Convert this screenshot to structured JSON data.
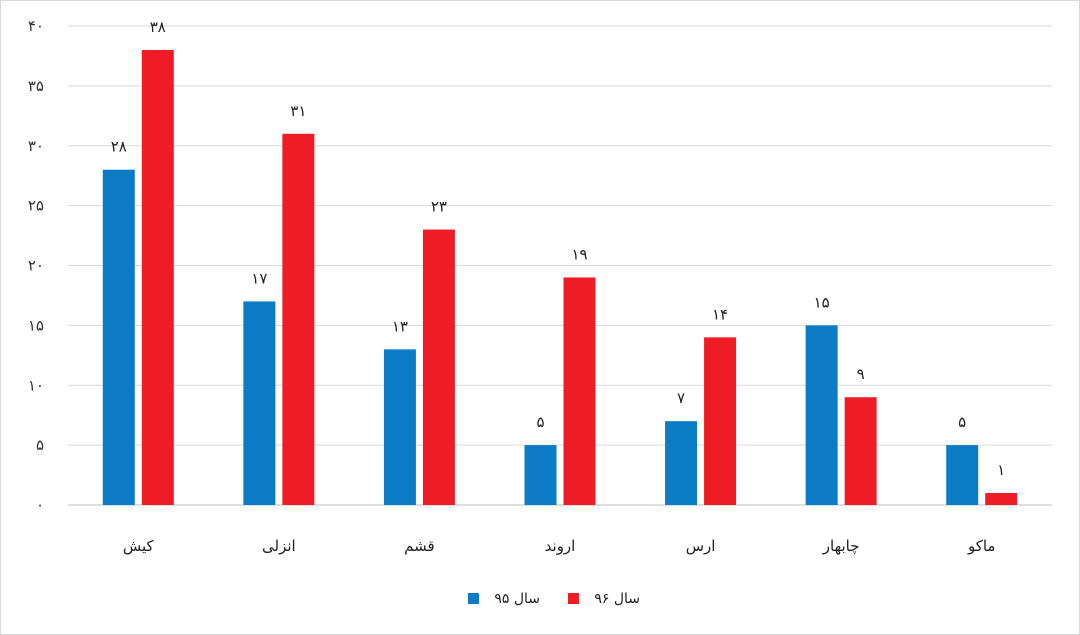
{
  "chart_data": {
    "type": "bar",
    "title": "",
    "xlabel": "",
    "ylabel": "",
    "categories": [
      "کیش",
      "انزلی",
      "قشم",
      "اروند",
      "ارس",
      "چابهار",
      "ماکو"
    ],
    "series": [
      {
        "name": "سال ۹۵",
        "color": "#0a7bc4",
        "values": [
          28,
          17,
          13,
          5,
          7,
          15,
          5
        ],
        "labels": [
          "۲۸",
          "۱۷",
          "۱۳",
          "۵",
          "۷",
          "۱۵",
          "۵"
        ]
      },
      {
        "name": "سال ۹۶",
        "color": "#ee1c25",
        "values": [
          38,
          31,
          23,
          19,
          14,
          9,
          1
        ],
        "labels": [
          "۳۸",
          "۳۱",
          "۲۳",
          "۱۹",
          "۱۴",
          "۹",
          "۱"
        ]
      }
    ],
    "ylim": [
      0,
      40
    ],
    "yticks": [
      0,
      5,
      10,
      15,
      20,
      25,
      30,
      35,
      40
    ],
    "ytick_labels": [
      "۰",
      "۵",
      "۱۰",
      "۱۵",
      "۲۰",
      "۲۵",
      "۳۰",
      "۳۵",
      "۴۰"
    ],
    "grid": true,
    "legend_position": "bottom-center"
  }
}
